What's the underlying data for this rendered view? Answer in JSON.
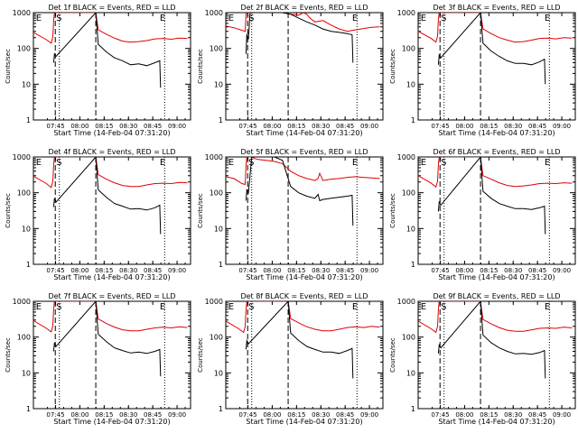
{
  "common": {
    "type": "line",
    "ylabel": "Counts/sec",
    "xlabel": "Start Time (14-Feb-04 07:31:20)",
    "x_ticks": [
      "07:45",
      "08:00",
      "08:15",
      "08:30",
      "08:45",
      "09:00"
    ],
    "x_tick_minutes": [
      13.67,
      28.67,
      43.67,
      58.67,
      73.67,
      88.67
    ],
    "xlim_minutes": [
      0,
      97
    ],
    "y_ticks": [
      "1",
      "10",
      "100",
      "1000"
    ],
    "y_tick_values": [
      1,
      10,
      100,
      1000
    ],
    "ylim": [
      1,
      1000
    ],
    "yscale": "log",
    "colors": {
      "events": "#000000",
      "lld": "#e00000",
      "axes": "#000000"
    },
    "markers": {
      "S": "S",
      "E": "E"
    }
  },
  "chart_data": [
    {
      "title": "Det 1f BLACK = Events, RED = LLD",
      "type": "line",
      "vlines_dashed_min": [
        13.5,
        38.5
      ],
      "vlines_dotted_min": [
        16,
        81
      ],
      "marker_S_min": 14,
      "marker_E_left_min": 1.5,
      "marker_E_right_min": 78,
      "series": [
        {
          "name": "LLD",
          "color": "#e00000",
          "x": [
            0,
            8,
            11,
            12,
            12.5,
            13,
            38.5,
            40,
            45,
            50,
            55,
            60,
            65,
            70,
            75,
            80,
            85,
            90,
            95
          ],
          "y": [
            280,
            175,
            140,
            210,
            600,
            1000,
            1000,
            330,
            250,
            195,
            160,
            150,
            155,
            165,
            185,
            190,
            180,
            195,
            190
          ]
        },
        {
          "name": "Events",
          "color": "#000000",
          "x": [
            12.5,
            13,
            14,
            38.5,
            40,
            45,
            50,
            55,
            60,
            65,
            70,
            75,
            78,
            78.5
          ],
          "y": [
            40,
            70,
            60,
            1000,
            130,
            80,
            55,
            45,
            35,
            37,
            33,
            40,
            45,
            8
          ]
        }
      ]
    },
    {
      "title": "Det 2f BLACK = Events, RED = LLD",
      "type": "line",
      "vlines_dashed_min": [
        13.5,
        38.5
      ],
      "vlines_dotted_min": [
        16,
        81
      ],
      "marker_S_min": 14,
      "marker_E_left_min": 1.5,
      "marker_E_right_min": 78,
      "series": [
        {
          "name": "LLD",
          "color": "#e00000",
          "x": [
            0,
            5,
            10,
            12,
            12.5,
            13,
            14,
            15,
            16,
            20,
            25,
            30,
            35,
            40,
            45,
            48,
            50,
            52,
            55,
            60,
            65,
            70,
            75,
            80,
            85,
            90,
            95
          ],
          "y": [
            420,
            380,
            320,
            300,
            900,
            1000,
            1000,
            1000,
            1000,
            1000,
            1000,
            1000,
            1000,
            900,
            850,
            1000,
            900,
            700,
            550,
            600,
            450,
            350,
            300,
            330,
            360,
            390,
            400
          ]
        },
        {
          "name": "Events",
          "color": "#000000",
          "x": [
            12.5,
            13,
            14,
            15,
            16,
            20,
            25,
            30,
            35,
            40,
            45,
            50,
            55,
            60,
            65,
            70,
            75,
            78,
            78.5
          ],
          "y": [
            70,
            250,
            180,
            1000,
            1000,
            1000,
            1000,
            1000,
            1000,
            900,
            700,
            550,
            450,
            350,
            300,
            280,
            260,
            240,
            40
          ]
        }
      ]
    },
    {
      "title": "Det 3f BLACK = Events, RED = LLD",
      "type": "line",
      "vlines_dashed_min": [
        13.5,
        38.5
      ],
      "vlines_dotted_min": [
        16,
        81
      ],
      "marker_S_min": 14,
      "marker_E_left_min": 1.5,
      "marker_E_right_min": 78,
      "series": [
        {
          "name": "LLD",
          "color": "#e00000",
          "x": [
            0,
            8,
            11,
            12,
            12.5,
            13,
            38.5,
            40,
            45,
            50,
            55,
            60,
            65,
            70,
            75,
            80,
            85,
            90,
            95
          ],
          "y": [
            300,
            190,
            150,
            220,
            650,
            1000,
            1000,
            350,
            260,
            200,
            170,
            150,
            155,
            170,
            190,
            195,
            185,
            200,
            195
          ]
        },
        {
          "name": "Events",
          "color": "#000000",
          "x": [
            12.5,
            13,
            14,
            38.5,
            40,
            45,
            50,
            55,
            60,
            65,
            70,
            75,
            78,
            78.5
          ],
          "y": [
            35,
            65,
            55,
            1000,
            140,
            85,
            60,
            45,
            38,
            38,
            35,
            42,
            50,
            10
          ]
        }
      ]
    },
    {
      "title": "Det 4f BLACK = Events, RED = LLD",
      "type": "line",
      "vlines_dashed_min": [
        13.5,
        38.5
      ],
      "vlines_dotted_min": [
        16,
        81
      ],
      "marker_S_min": 14,
      "marker_E_left_min": 1.5,
      "marker_E_right_min": 78,
      "series": [
        {
          "name": "LLD",
          "color": "#e00000",
          "x": [
            0,
            8,
            11,
            12,
            12.5,
            13,
            38.5,
            40,
            45,
            50,
            55,
            60,
            65,
            70,
            75,
            80,
            85,
            90,
            95
          ],
          "y": [
            290,
            180,
            140,
            210,
            600,
            1000,
            1000,
            320,
            240,
            190,
            160,
            150,
            150,
            165,
            180,
            185,
            180,
            195,
            190
          ]
        },
        {
          "name": "Events",
          "color": "#000000",
          "x": [
            12.5,
            13,
            14,
            38.5,
            40,
            45,
            50,
            55,
            60,
            65,
            70,
            75,
            78,
            78.5
          ],
          "y": [
            40,
            70,
            55,
            1000,
            120,
            75,
            50,
            42,
            35,
            36,
            33,
            38,
            45,
            7
          ]
        }
      ]
    },
    {
      "title": "Det 5f BLACK = Events, RED = LLD",
      "type": "line",
      "vlines_dashed_min": [
        13.5,
        38.5
      ],
      "vlines_dotted_min": [
        16,
        81
      ],
      "marker_S_min": 14,
      "marker_E_left_min": 1.5,
      "marker_E_right_min": 78,
      "series": [
        {
          "name": "LLD",
          "color": "#e00000",
          "x": [
            0,
            5,
            10,
            12,
            12.5,
            13,
            14,
            16,
            18,
            20,
            25,
            30,
            35,
            40,
            45,
            50,
            55,
            57,
            58,
            60,
            65,
            70,
            75,
            80,
            85,
            90,
            95
          ],
          "y": [
            280,
            250,
            180,
            170,
            600,
            1000,
            1000,
            1000,
            900,
            850,
            800,
            750,
            650,
            400,
            300,
            250,
            220,
            250,
            350,
            220,
            240,
            250,
            270,
            280,
            270,
            260,
            250
          ]
        },
        {
          "name": "Events",
          "color": "#000000",
          "x": [
            12.5,
            13,
            14,
            16,
            18,
            20,
            25,
            30,
            35,
            40,
            45,
            50,
            55,
            57,
            58,
            60,
            65,
            70,
            75,
            78,
            78.5
          ],
          "y": [
            60,
            120,
            100,
            1000,
            1000,
            1000,
            1000,
            1000,
            800,
            150,
            100,
            80,
            70,
            90,
            60,
            65,
            70,
            75,
            80,
            85,
            12
          ]
        }
      ]
    },
    {
      "title": "Det 6f BLACK = Events, RED = LLD",
      "type": "line",
      "vlines_dashed_min": [
        13.5,
        38.5
      ],
      "vlines_dotted_min": [
        16,
        81
      ],
      "marker_S_min": 14,
      "marker_E_left_min": 1.5,
      "marker_E_right_min": 78,
      "series": [
        {
          "name": "LLD",
          "color": "#e00000",
          "x": [
            0,
            8,
            11,
            12,
            12.5,
            13,
            38.5,
            40,
            45,
            50,
            55,
            60,
            65,
            70,
            75,
            80,
            85,
            90,
            95
          ],
          "y": [
            300,
            185,
            145,
            210,
            620,
            1000,
            1000,
            300,
            240,
            190,
            160,
            150,
            155,
            165,
            180,
            185,
            180,
            190,
            185
          ]
        },
        {
          "name": "Events",
          "color": "#000000",
          "x": [
            12.5,
            13,
            14,
            38.5,
            40,
            45,
            50,
            55,
            60,
            65,
            70,
            75,
            78,
            78.5
          ],
          "y": [
            30,
            55,
            45,
            1000,
            110,
            70,
            50,
            42,
            36,
            36,
            34,
            38,
            42,
            7
          ]
        }
      ]
    },
    {
      "title": "Det 7f BLACK = Events, RED = LLD",
      "type": "line",
      "vlines_dashed_min": [
        13.5,
        38.5
      ],
      "vlines_dotted_min": [
        16,
        81
      ],
      "marker_S_min": 14,
      "marker_E_left_min": 1.5,
      "marker_E_right_min": 78,
      "series": [
        {
          "name": "LLD",
          "color": "#e00000",
          "x": [
            0,
            8,
            11,
            12,
            12.5,
            13,
            38.5,
            40,
            45,
            50,
            55,
            60,
            65,
            70,
            75,
            80,
            85,
            90,
            95
          ],
          "y": [
            290,
            175,
            140,
            210,
            600,
            1000,
            1000,
            320,
            240,
            190,
            160,
            150,
            150,
            165,
            180,
            190,
            180,
            195,
            185
          ]
        },
        {
          "name": "Events",
          "color": "#000000",
          "x": [
            12.5,
            13,
            14,
            38.5,
            40,
            45,
            50,
            55,
            60,
            65,
            70,
            75,
            78,
            78.5
          ],
          "y": [
            40,
            70,
            55,
            1000,
            120,
            75,
            50,
            42,
            36,
            38,
            35,
            40,
            45,
            8
          ]
        }
      ]
    },
    {
      "title": "Det 8f BLACK = Events, RED = LLD",
      "type": "line",
      "vlines_dashed_min": [
        13.5,
        38.5
      ],
      "vlines_dotted_min": [
        16,
        81
      ],
      "marker_S_min": 14,
      "marker_E_left_min": 1.5,
      "marker_E_right_min": 78,
      "series": [
        {
          "name": "LLD",
          "color": "#e00000",
          "x": [
            0,
            8,
            11,
            12,
            12.5,
            13,
            38.5,
            40,
            45,
            50,
            55,
            60,
            65,
            70,
            75,
            80,
            85,
            90,
            95
          ],
          "y": [
            280,
            170,
            135,
            200,
            580,
            1000,
            1000,
            330,
            250,
            195,
            165,
            150,
            150,
            165,
            185,
            195,
            185,
            200,
            190
          ]
        },
        {
          "name": "Events",
          "color": "#000000",
          "x": [
            12.5,
            13,
            14,
            38.5,
            40,
            45,
            50,
            55,
            60,
            65,
            70,
            75,
            78,
            78.5
          ],
          "y": [
            45,
            80,
            65,
            1000,
            130,
            80,
            55,
            45,
            38,
            38,
            35,
            42,
            48,
            7
          ]
        }
      ]
    },
    {
      "title": "Det 9f BLACK = Events, RED = LLD",
      "type": "line",
      "vlines_dashed_min": [
        13.5,
        38.5
      ],
      "vlines_dotted_min": [
        16,
        81
      ],
      "marker_S_min": 14,
      "marker_E_left_min": 1.5,
      "marker_E_right_min": 78,
      "series": [
        {
          "name": "LLD",
          "color": "#e00000",
          "x": [
            0,
            8,
            11,
            12,
            12.5,
            13,
            38.5,
            40,
            45,
            50,
            55,
            60,
            65,
            70,
            75,
            80,
            85,
            90,
            95
          ],
          "y": [
            280,
            170,
            135,
            200,
            590,
            1000,
            1000,
            310,
            235,
            185,
            155,
            145,
            145,
            160,
            175,
            180,
            175,
            190,
            180
          ]
        },
        {
          "name": "Events",
          "color": "#000000",
          "x": [
            12.5,
            13,
            14,
            38.5,
            40,
            45,
            50,
            55,
            60,
            65,
            70,
            75,
            78,
            78.5
          ],
          "y": [
            35,
            60,
            50,
            1000,
            115,
            70,
            50,
            40,
            34,
            35,
            33,
            37,
            42,
            7
          ]
        }
      ]
    }
  ]
}
